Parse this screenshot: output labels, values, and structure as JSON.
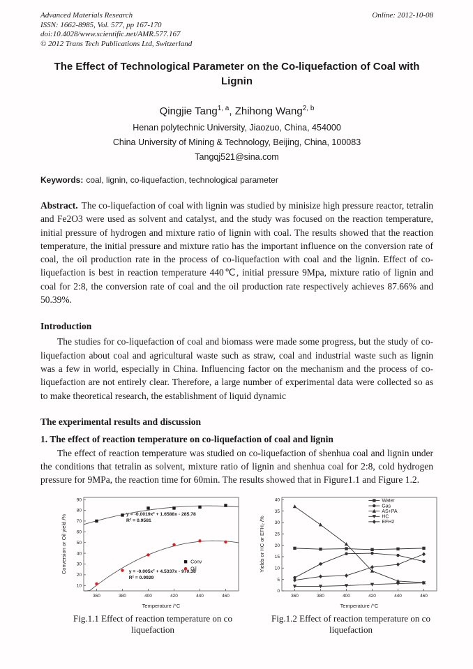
{
  "header": {
    "journal": "Advanced Materials Research",
    "issn_line": "ISSN: 1662-8985, Vol. 577, pp 167-170",
    "doi_line": "doi:10.4028/www.scientific.net/AMR.577.167",
    "copyright_line": "© 2012 Trans Tech Publications Ltd, Switzerland",
    "online_date": "Online: 2012-10-08"
  },
  "title": "The Effect of Technological Parameter on the Co-liquefaction of Coal with Lignin",
  "authors": {
    "a1_name": "Qingjie Tang",
    "a1_sup": "1, a",
    "sep": ", ",
    "a2_name": "Zhihong Wang",
    "a2_sup": "2, b"
  },
  "affiliations": [
    "Henan polytechnic University, Jiaozuo, China, 454000",
    "China University of Mining & Technology, Beijing, China, 100083",
    "Tangqj521@sina.com"
  ],
  "keywords": {
    "label": "Keywords:",
    "text": "coal, lignin, co-liquefaction, technological parameter"
  },
  "abstract": {
    "label": "Abstract.",
    "text": "The co-liquefaction of coal with lignin was studied by minisize high pressure reactor, tetralin and Fe2O3 were used as solvent and catalyst, and the study was focused on the reaction temperature, initial pressure of hydrogen and mixture ratio of lignin with coal. The results showed that the reaction temperature, the initial pressure and mixture ratio has the important influence on the conversion rate of coal, the oil production rate in the process of co-liquefaction with coal and the lignin. Effect of co-liquefaction is best in reaction temperature 440℃, initial pressure 9Mpa, mixture ratio of lignin and coal for 2:8, the conversion rate of coal and the oil production rate respectively achieves 87.66% and 50.39%."
  },
  "sections": {
    "introduction": {
      "heading": "Introduction",
      "body": "The studies for co-liquefaction of coal and biomass were made some progress, but the study of co-liquefaction about coal and agricultural waste such as straw, coal and industrial waste such as lignin was a few in world, especially in China. Influencing factor on the mechanism and the process of co-liquefaction are not entirely clear. Therefore, a large number of experimental data were collected so as to make theoretical research, the establishment of liquid dynamic"
    },
    "results": {
      "heading": "The experimental results and discussion",
      "sub1_heading": "1.   The effect of reaction temperature on co-liquefaction of coal and lignin",
      "sub1_body": "The effect of reaction temperature was studied on co-liquefaction of shenhua coal and lignin under the conditions that tetralin as solvent, mixture ratio of lignin and shenhua coal for 2:8, cold hydrogen pressure for 9MPa, the reaction time for 60min. The results showed that in Figure1.1 and Figure 1.2."
    }
  },
  "figures": [
    {
      "caption_line1": "Fig.1.1 Effect of reaction temperature on co",
      "caption_line2": "liquefaction"
    },
    {
      "caption_line1": "Fig.1.2 Effect of reaction temperature on co",
      "caption_line2": "liquefaction"
    }
  ],
  "chart_data": [
    {
      "type": "scatter",
      "title": "",
      "xlabel": "Temperature /°C",
      "ylabel": "Conversion or Oil yield /%",
      "x": [
        360,
        380,
        400,
        420,
        440,
        460
      ],
      "xlim": [
        350,
        470
      ],
      "ylim": [
        5,
        92
      ],
      "xticks": [
        360,
        380,
        400,
        420,
        440,
        460
      ],
      "yticks": [
        10,
        20,
        30,
        40,
        50,
        60,
        70,
        80,
        90
      ],
      "grid": false,
      "legend_position": "center-right",
      "series": [
        {
          "name": "Conv",
          "marker": "square",
          "color": "#1a1a1a",
          "line": "fit",
          "line_color": "#555555",
          "values": [
            70,
            75.5,
            82,
            82,
            83,
            84.5
          ]
        },
        {
          "name": "Oil",
          "marker": "circle",
          "color": "#e02020",
          "line": "fit",
          "line_color": "#555555",
          "values": [
            11.5,
            24,
            38.5,
            48,
            51.5,
            50.5
          ]
        }
      ],
      "annotations": [
        {
          "x": 383,
          "y": 75,
          "color": "#1a1a1a",
          "lines": [
            "y = -0.0019x² + 1.6588x - 285.78",
            "R² = 0.9581"
          ]
        },
        {
          "x": 385,
          "y": 22,
          "color": "#1a1a1a",
          "lines": [
            "y = -0.005x² + 4.5337x - 970.38",
            "R² = 0.9929"
          ]
        }
      ],
      "legend": {
        "fx": 0.64,
        "fy": 0.66,
        "with_line": false
      }
    },
    {
      "type": "line",
      "title": "",
      "xlabel": "Temperature /°C",
      "ylabel": "Yields or HC or EFH₂ /%",
      "x": [
        360,
        380,
        400,
        420,
        440,
        460
      ],
      "xlim": [
        350,
        470
      ],
      "ylim": [
        0,
        41
      ],
      "xticks": [
        360,
        380,
        400,
        420,
        440,
        460
      ],
      "yticks": [
        0,
        5,
        10,
        15,
        20,
        25,
        30,
        35,
        40
      ],
      "grid": false,
      "legend_position": "top-right",
      "series": [
        {
          "name": "Water",
          "marker": "square",
          "color": "#333333",
          "line": "straight",
          "values": [
            18.7,
            18.3,
            18.5,
            18.1,
            18.4,
            18.7
          ]
        },
        {
          "name": "Gas",
          "marker": "circle",
          "color": "#333333",
          "line": "straight",
          "values": [
            5.8,
            11.8,
            16.3,
            16.5,
            15.6,
            12.9
          ]
        },
        {
          "name": "AS+PA",
          "marker": "triangle-up",
          "color": "#333333",
          "line": "straight",
          "values": [
            37,
            29,
            20.5,
            8.7,
            4.3,
            3.6
          ]
        },
        {
          "name": "HC",
          "marker": "triangle-down",
          "color": "#333333",
          "line": "straight",
          "values": [
            2.0,
            2.0,
            2.3,
            2.8,
            3.2,
            3.5
          ]
        },
        {
          "name": "EFH2",
          "marker": "diamond",
          "color": "#333333",
          "line": "straight",
          "values": [
            4.7,
            6.3,
            6.7,
            10.4,
            11.6,
            16.1
          ]
        }
      ],
      "annotations": [],
      "legend": {
        "fx": 0.56,
        "fy": 0.005,
        "with_line": true
      }
    }
  ]
}
